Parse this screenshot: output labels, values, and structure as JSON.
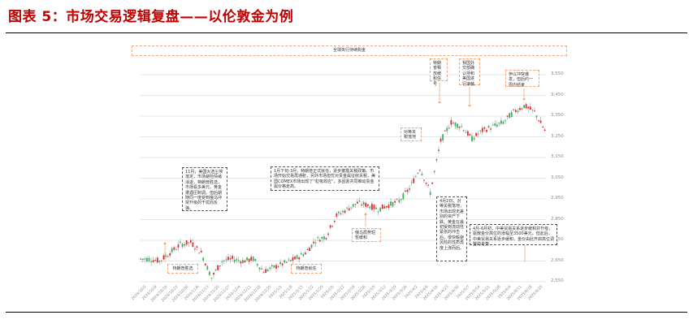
{
  "figure": {
    "title": "图表 5：市场交易逻辑复盘——以伦敦金为例"
  },
  "chart_data": {
    "type": "candlestick",
    "title": "全球央行持续购金",
    "xlabel": "",
    "ylabel": "",
    "ylim": [
      2550,
      3550
    ],
    "grid": true,
    "y_ticks": [
      "3,550",
      "3,450",
      "3,350",
      "3,250",
      "3,150",
      "3,050",
      "2,950",
      "2,850",
      "2,750",
      "2,650",
      "2,550"
    ],
    "x_ticks": [
      "2024/10/2",
      "2024/10/9",
      "2024/10/16",
      "2024/10/23",
      "2024/10/30",
      "2024/11/6",
      "2024/11/13",
      "2024/11/20",
      "2024/11/27",
      "2024/12/4",
      "2024/12/11",
      "2024/12/18",
      "2024/12/25",
      "2025/1/1",
      "2025/1/8",
      "2025/1/15",
      "2025/1/22",
      "2025/1/29",
      "2025/2/5",
      "2025/2/12",
      "2025/2/19",
      "2025/2/26",
      "2025/3/5",
      "2025/3/12",
      "2025/3/19",
      "2025/3/26",
      "2025/4/2",
      "2025/4/9",
      "2025/4/16",
      "2025/4/23",
      "2025/4/30",
      "2025/5/7",
      "2025/5/14",
      "2025/5/21",
      "2025/5/28",
      "2025/6/4",
      "2025/6/11",
      "2025/6/18",
      "2025/6/25"
    ],
    "weekly_close_approx": [
      2660,
      2650,
      2690,
      2730,
      2740,
      2690,
      2570,
      2650,
      2660,
      2650,
      2660,
      2600,
      2620,
      2640,
      2660,
      2690,
      2750,
      2770,
      2870,
      2900,
      2930,
      2920,
      2900,
      2920,
      2940,
      3000,
      3100,
      2980,
      3230,
      3320,
      3300,
      3240,
      3280,
      3300,
      3320,
      3370,
      3400,
      3370,
      3280
    ],
    "colors": {
      "up": "#e8262a",
      "down": "#2fb45a",
      "annotation_border": "#f0a87a",
      "gridline": "#e6e6e6"
    },
    "annotations": [
      {
        "id": "a1",
        "text": "11月，美国大选尘埃落定，市场避险情绪消退，特朗普胜选，市场看多美元，黄金遭遇压制调。但后期随同一度受到俄乌冲突升级的干扰而反弹。",
        "style": "box"
      },
      {
        "id": "a2",
        "text": "1月下旬-3月，特朗普正式就任，逐步披露关税政策。市场开始交易再通胀，另外市场担忧对贵金属征收关税，美国COMEX市场出现了“虹吸效应”，多因素共同推动贵金属价格走高。",
        "style": "box"
      },
      {
        "id": "a3",
        "text": "4月2日，对等关税落地，市场出现无差别的资产下跌。黄金在最初受到流动性紧张的冲击后，很快躲避风险的性质再度上涨而后。",
        "style": "box"
      },
      {
        "id": "a4",
        "text": "4月-6月初，中美贸易关系逐步缓和并升级，驱散金价高位的涨幅至3500美元。但此后，中美贸易关系逐步缓和，金价由此开启高位调整的走势",
        "style": "box"
      },
      {
        "id": "a5",
        "text": "特朗普胜选",
        "style": "callout"
      },
      {
        "id": "a6",
        "text": "特朗普就任",
        "style": "callout"
      },
      {
        "id": "a7",
        "text": "俄乌局势短暂缓和",
        "style": "callout"
      },
      {
        "id": "a8",
        "text": "对等关税落地",
        "style": "callout"
      },
      {
        "id": "a9",
        "text": "特朗普释放缓和信号",
        "style": "callout"
      },
      {
        "id": "a10",
        "text": "我国外交部确认持和美国进行接触",
        "style": "callout"
      },
      {
        "id": "a11",
        "text": "伊以冲突爆发，但后约一周内结束",
        "style": "callout"
      }
    ]
  }
}
